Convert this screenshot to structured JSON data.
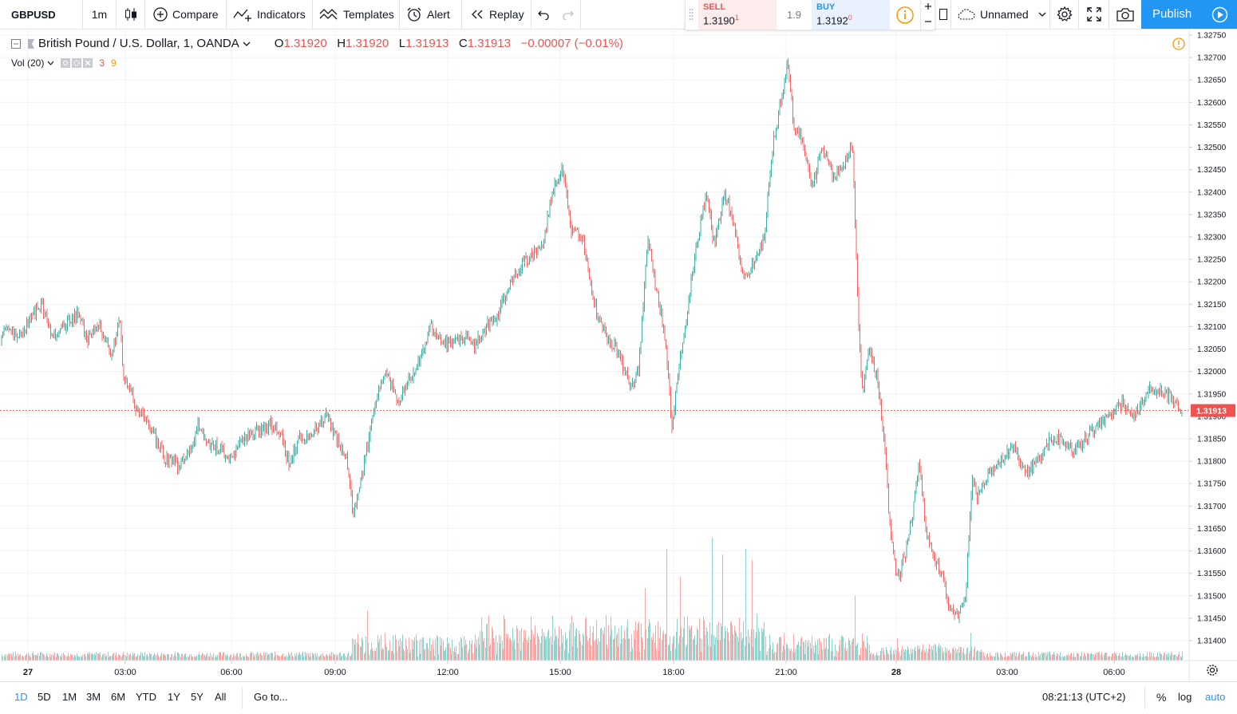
{
  "toolbar": {
    "symbol": "GBPUSD",
    "interval": "1m",
    "compare": "Compare",
    "indicators": "Indicators",
    "templates": "Templates",
    "alert": "Alert",
    "replay": "Replay",
    "layout_name": "Unnamed",
    "publish": "Publish"
  },
  "trade": {
    "sell_label": "SELL",
    "sell_price": "1.3190",
    "sell_sup": "1",
    "spread": "1.9",
    "buy_label": "BUY",
    "buy_price": "1.3192",
    "buy_sup": "0"
  },
  "legend": {
    "title": "British Pound / U.S. Dollar, 1, OANDA",
    "o_key": "O",
    "o_val": "1.31920",
    "h_key": "H",
    "h_val": "1.31920",
    "l_key": "L",
    "l_val": "1.31913",
    "c_key": "C",
    "c_val": "1.31913",
    "change": "−0.00007 (−0.01%)",
    "vol_label": "Vol (20)",
    "vol_val1": "3",
    "vol_val2": "9"
  },
  "bottom": {
    "ranges": [
      "1D",
      "5D",
      "1M",
      "3M",
      "6M",
      "YTD",
      "1Y",
      "5Y",
      "All"
    ],
    "active_range": "1D",
    "goto": "Go to...",
    "clock": "08:21:13 (UTC+2)",
    "percent": "%",
    "log": "log",
    "auto": "auto"
  },
  "colors": {
    "up": "#26a69a",
    "down": "#ef5350",
    "accent": "#2196f3",
    "last_price": "#ef5350"
  },
  "chart_data": {
    "type": "candlestick",
    "symbol": "GBPUSD",
    "interval": "1m",
    "y_ticks": [
      1.3275,
      1.327,
      1.3265,
      1.326,
      1.3255,
      1.325,
      1.3245,
      1.324,
      1.3235,
      1.323,
      1.3225,
      1.322,
      1.3215,
      1.321,
      1.3205,
      1.32,
      1.3195,
      1.319,
      1.3185,
      1.318,
      1.3175,
      1.317,
      1.3165,
      1.316,
      1.3155,
      1.315,
      1.3145,
      1.314
    ],
    "y_range": [
      1.31375,
      1.32775
    ],
    "x_ticks": [
      "27",
      "03:00",
      "06:00",
      "09:00",
      "12:00",
      "15:00",
      "18:00",
      "21:00",
      "28",
      "03:00",
      "06:00"
    ],
    "last_price": "1.31913",
    "price_path": [
      [
        0,
        1.3205
      ],
      [
        8,
        1.321
      ],
      [
        20,
        1.3207
      ],
      [
        35,
        1.3211
      ],
      [
        52,
        1.3215
      ],
      [
        65,
        1.3208
      ],
      [
        80,
        1.321
      ],
      [
        97,
        1.3213
      ],
      [
        110,
        1.3207
      ],
      [
        125,
        1.321
      ],
      [
        140,
        1.3203
      ],
      [
        150,
        1.3212
      ],
      [
        155,
        1.3198
      ],
      [
        165,
        1.3195
      ],
      [
        172,
        1.3191
      ],
      [
        180,
        1.319
      ],
      [
        195,
        1.3185
      ],
      [
        205,
        1.3181
      ],
      [
        215,
        1.318
      ],
      [
        225,
        1.3179
      ],
      [
        240,
        1.3183
      ],
      [
        248,
        1.3188
      ],
      [
        262,
        1.3184
      ],
      [
        275,
        1.3183
      ],
      [
        290,
        1.318
      ],
      [
        305,
        1.3185
      ],
      [
        320,
        1.3187
      ],
      [
        340,
        1.3188
      ],
      [
        350,
        1.3187
      ],
      [
        362,
        1.318
      ],
      [
        375,
        1.3185
      ],
      [
        390,
        1.3186
      ],
      [
        410,
        1.319
      ],
      [
        422,
        1.3185
      ],
      [
        435,
        1.318
      ],
      [
        443,
        1.3168
      ],
      [
        452,
        1.3175
      ],
      [
        462,
        1.3185
      ],
      [
        472,
        1.3195
      ],
      [
        485,
        1.32
      ],
      [
        498,
        1.3193
      ],
      [
        510,
        1.3197
      ],
      [
        525,
        1.3202
      ],
      [
        540,
        1.321
      ],
      [
        560,
        1.3206
      ],
      [
        580,
        1.3208
      ],
      [
        595,
        1.3206
      ],
      [
        610,
        1.321
      ],
      [
        625,
        1.3213
      ],
      [
        640,
        1.322
      ],
      [
        660,
        1.3225
      ],
      [
        680,
        1.3228
      ],
      [
        692,
        1.324
      ],
      [
        705,
        1.3245
      ],
      [
        715,
        1.3232
      ],
      [
        730,
        1.323
      ],
      [
        745,
        1.3215
      ],
      [
        760,
        1.3208
      ],
      [
        775,
        1.3204
      ],
      [
        790,
        1.3197
      ],
      [
        800,
        1.32
      ],
      [
        812,
        1.323
      ],
      [
        822,
        1.3218
      ],
      [
        832,
        1.321
      ],
      [
        842,
        1.3188
      ],
      [
        850,
        1.32
      ],
      [
        860,
        1.3212
      ],
      [
        870,
        1.3225
      ],
      [
        885,
        1.324
      ],
      [
        895,
        1.3228
      ],
      [
        908,
        1.324
      ],
      [
        920,
        1.3233
      ],
      [
        932,
        1.322
      ],
      [
        945,
        1.3225
      ],
      [
        958,
        1.323
      ],
      [
        968,
        1.325
      ],
      [
        978,
        1.326
      ],
      [
        987,
        1.3269
      ],
      [
        995,
        1.3254
      ],
      [
        1005,
        1.3252
      ],
      [
        1018,
        1.3241
      ],
      [
        1030,
        1.325
      ],
      [
        1045,
        1.3243
      ],
      [
        1060,
        1.3247
      ],
      [
        1068,
        1.3252
      ],
      [
        1075,
        1.3215
      ],
      [
        1080,
        1.3195
      ],
      [
        1090,
        1.3205
      ],
      [
        1100,
        1.3198
      ],
      [
        1108,
        1.3185
      ],
      [
        1115,
        1.3165
      ],
      [
        1125,
        1.3153
      ],
      [
        1135,
        1.316
      ],
      [
        1145,
        1.317
      ],
      [
        1152,
        1.318
      ],
      [
        1160,
        1.3165
      ],
      [
        1170,
        1.3158
      ],
      [
        1180,
        1.3155
      ],
      [
        1190,
        1.3147
      ],
      [
        1200,
        1.3145
      ],
      [
        1210,
        1.315
      ],
      [
        1218,
        1.3175
      ],
      [
        1225,
        1.3172
      ],
      [
        1240,
        1.3178
      ],
      [
        1255,
        1.318
      ],
      [
        1270,
        1.3183
      ],
      [
        1285,
        1.3177
      ],
      [
        1300,
        1.318
      ],
      [
        1315,
        1.3185
      ],
      [
        1330,
        1.3185
      ],
      [
        1345,
        1.3182
      ],
      [
        1360,
        1.3185
      ],
      [
        1375,
        1.3188
      ],
      [
        1390,
        1.319
      ],
      [
        1405,
        1.3193
      ],
      [
        1420,
        1.319
      ],
      [
        1440,
        1.3196
      ],
      [
        1455,
        1.3196
      ],
      [
        1470,
        1.3194
      ],
      [
        1480,
        1.3191
      ]
    ],
    "volume_spikes": [
      [
        151,
        0.38
      ],
      [
        460,
        0.45
      ],
      [
        628,
        0.88
      ],
      [
        741,
        0.55
      ],
      [
        808,
        0.65
      ],
      [
        828,
        0.72
      ],
      [
        835,
        1.0
      ],
      [
        852,
        0.75
      ],
      [
        892,
        1.1
      ],
      [
        905,
        0.95
      ],
      [
        934,
        1.0
      ],
      [
        942,
        0.9
      ],
      [
        1071,
        0.58
      ],
      [
        1216,
        0.25
      ],
      [
        1124,
        0.2
      ]
    ]
  }
}
